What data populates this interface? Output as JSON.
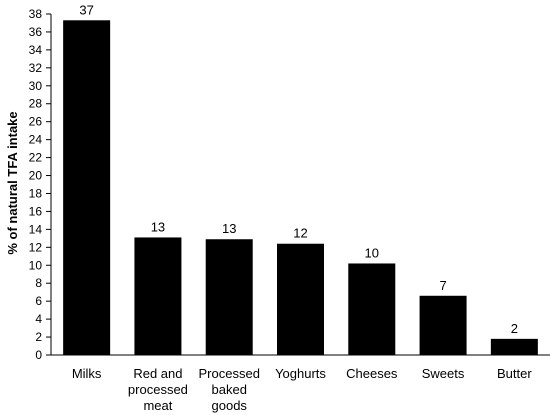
{
  "chart_data": {
    "type": "bar",
    "categories": [
      [
        "Milks"
      ],
      [
        "Red and",
        "processed",
        "meat"
      ],
      [
        "Processed",
        "baked",
        "goods"
      ],
      [
        "Yoghurts"
      ],
      [
        "Cheeses"
      ],
      [
        "Sweets"
      ],
      [
        "Butter"
      ]
    ],
    "values": [
      37.3,
      13.1,
      12.9,
      12.4,
      10.2,
      6.6,
      1.8
    ],
    "data_labels": [
      "37",
      "13",
      "13",
      "12",
      "10",
      "7",
      "2"
    ],
    "title": "",
    "xlabel": "",
    "ylabel": "% of natural TFA intake",
    "ylim": [
      0,
      38
    ],
    "yticks": [
      0,
      2,
      4,
      6,
      8,
      10,
      12,
      14,
      16,
      18,
      20,
      22,
      24,
      26,
      28,
      30,
      32,
      34,
      36,
      38
    ],
    "grid": false,
    "legend": "none",
    "bar_color": "#000000"
  }
}
